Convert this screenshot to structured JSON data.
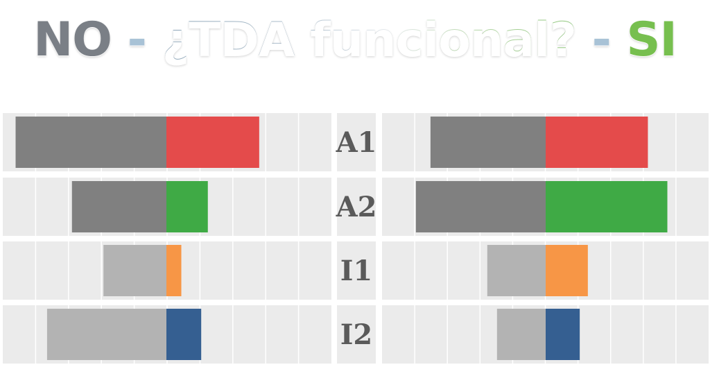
{
  "title": {
    "no": "NO",
    "sep1": " - ",
    "question": "¿TDA funcional?",
    "sep2": " - ",
    "si": "SI"
  },
  "colors": {
    "background": "#ffffff",
    "panel": "#ebebeb",
    "grid_line": "#ffffff",
    "dark_gray": "#808080",
    "light_gray": "#b3b3b3",
    "A1": "#e44b4b",
    "A2": "#3faa45",
    "I1": "#f79646",
    "I2": "#355f91",
    "title_no": "#7a7f86",
    "title_si": "#77bf4f"
  },
  "chart_data": [
    {
      "type": "bar",
      "orientation": "horizontal",
      "stacked": "diverging",
      "panel": "NO",
      "categories": [
        "A1",
        "A2",
        "I1",
        "I2"
      ],
      "xlim": [
        -9,
        8
      ],
      "grid": true,
      "series": [
        {
          "side": "negative",
          "values": [
            -9.1,
            -5.7,
            -3.8,
            -7.2
          ]
        },
        {
          "side": "positive",
          "values": [
            5.6,
            2.5,
            0.9,
            2.1
          ]
        }
      ]
    },
    {
      "type": "bar",
      "orientation": "horizontal",
      "stacked": "diverging",
      "panel": "SI",
      "categories": [
        "A1",
        "A2",
        "I1",
        "I2"
      ],
      "xlim": [
        -10,
        10
      ],
      "grid": true,
      "series": [
        {
          "side": "negative",
          "values": [
            -7.1,
            -8.0,
            -3.6,
            -3.0
          ]
        },
        {
          "side": "positive",
          "values": [
            6.3,
            7.5,
            2.6,
            2.1
          ]
        }
      ]
    }
  ]
}
